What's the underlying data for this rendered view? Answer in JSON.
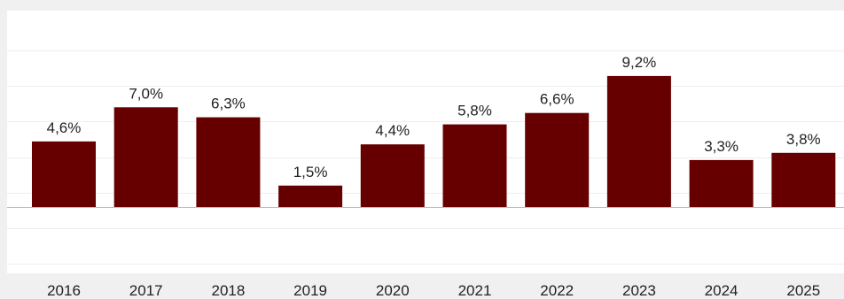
{
  "chart_data": {
    "type": "bar",
    "title": "",
    "xlabel": "",
    "ylabel": "",
    "categories": [
      "2016",
      "2017",
      "2018",
      "2019",
      "2020",
      "2021",
      "2022",
      "2023",
      "2024",
      "2025"
    ],
    "values": [
      4.6,
      7.0,
      6.3,
      1.5,
      4.4,
      5.8,
      6.6,
      9.2,
      3.3,
      3.8
    ],
    "data_labels": [
      "4,6%",
      "7,0%",
      "6,3%",
      "1,5%",
      "4,4%",
      "5,8%",
      "6,6%",
      "9,2%",
      "3,3%",
      "3,8%"
    ],
    "ylim": [
      -4,
      12
    ],
    "grid": true,
    "legend": "none",
    "colors": {
      "bar": "#660000",
      "plot_background": "#ffffff",
      "page_background": "#f0f0f0",
      "gridline": "#eeeeee",
      "zero_line": "#bbbbbb",
      "text": "#222222"
    }
  }
}
